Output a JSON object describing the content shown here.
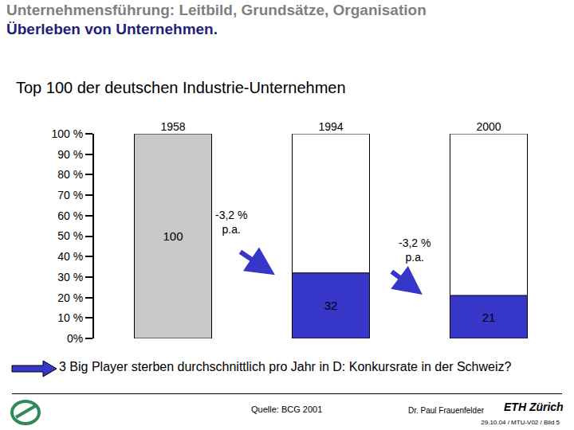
{
  "header": {
    "title": "Unternehmensführung: Leitbild, Grundsätze, Organisation",
    "subtitle": "Überleben von Unternehmen."
  },
  "chart_data": {
    "type": "bar",
    "title": "Top 100 der deutschen Industrie-Unternehmen",
    "categories": [
      "1958",
      "1994",
      "2000"
    ],
    "values": [
      100,
      32,
      21
    ],
    "colors": [
      "#c8c8c8",
      "#3636c8",
      "#3636c8"
    ],
    "data_labels": true,
    "grid": false,
    "ylim": [
      0,
      100
    ],
    "yticks": [
      {
        "value": 0,
        "label": "0%"
      },
      {
        "value": 10,
        "label": "10 %"
      },
      {
        "value": 20,
        "label": "20 %"
      },
      {
        "value": 30,
        "label": "30 %"
      },
      {
        "value": 40,
        "label": "40 %"
      },
      {
        "value": 50,
        "label": "50 %"
      },
      {
        "value": 60,
        "label": "60 %"
      },
      {
        "value": 70,
        "label": "70 %"
      },
      {
        "value": 80,
        "label": "80 %"
      },
      {
        "value": 90,
        "label": "90 %"
      },
      {
        "value": 100,
        "label": "100 %"
      }
    ],
    "annotations": [
      "-3,2 % p.a.",
      "-3,2 % p.a."
    ]
  },
  "footer": {
    "note": "3 Big Player sterben durchschnittlich pro Jahr in D: Konkursrate in der Schweiz?",
    "source": "Quelle: BCG 2001",
    "author": "Dr. Paul Frauenfelder",
    "institution": "ETH Zürich",
    "reference": "29.10.04 / MTU-V02 / Bild 5"
  }
}
